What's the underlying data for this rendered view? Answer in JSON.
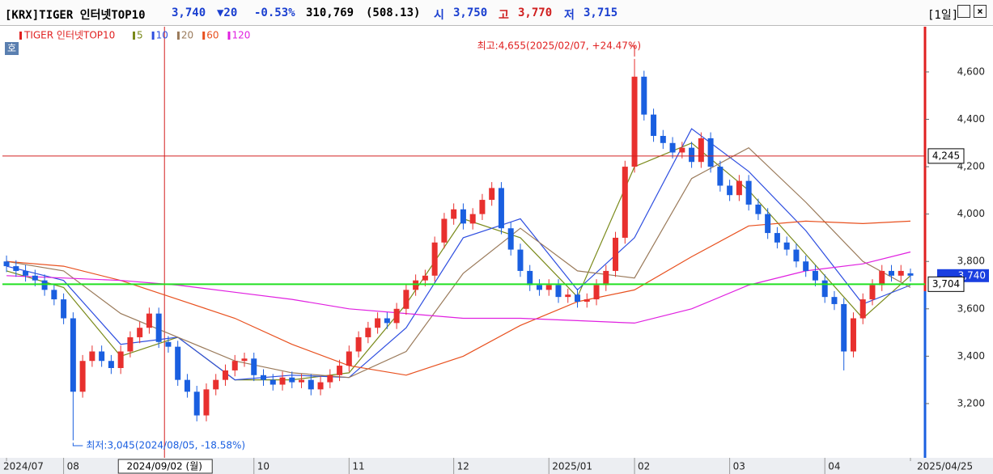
{
  "header": {
    "title": "[KRX]TIGER 인터넷TOP10",
    "price": "3,740",
    "change": "▼20",
    "change_pct": "-0.53%",
    "volume": "310,769",
    "amount": "(508.13)",
    "open_label": "시",
    "open": "3,750",
    "high_label": "고",
    "high": "3,770",
    "low_label": "저",
    "low": "3,715",
    "period": "[1일]"
  },
  "chart_data": {
    "type": "candlestick",
    "name": "TIGER 인터넷TOP10",
    "up_color": "#e8302e",
    "down_color": "#1a5fe0",
    "open": [
      3800,
      3780,
      3760,
      3740,
      3720,
      3680,
      3640,
      3560,
      3250,
      3380,
      3420,
      3380,
      3350,
      3420,
      3480,
      3520,
      3580,
      3460,
      3440,
      3300,
      3250,
      3150,
      3260,
      3300,
      3340,
      3380,
      3390,
      3320,
      3300,
      3280,
      3310,
      3290,
      3300,
      3260,
      3290,
      3320,
      3360,
      3420,
      3480,
      3520,
      3560,
      3540,
      3600,
      3680,
      3720,
      3740,
      3880,
      3980,
      4020,
      3960,
      4000,
      4060,
      4110,
      3940,
      3850,
      3760,
      3700,
      3680,
      3700,
      3650,
      3660,
      3630,
      3640,
      3700,
      3760,
      3900,
      4200,
      4580,
      4420,
      4330,
      4300,
      4260,
      4280,
      4220,
      4320,
      4200,
      4120,
      4080,
      4140,
      4040,
      4000,
      3920,
      3880,
      3850,
      3800,
      3760,
      3720,
      3650,
      3620,
      3420,
      3560,
      3640,
      3700,
      3760,
      3740,
      3750
    ],
    "high": [
      3825,
      3805,
      3785,
      3765,
      3745,
      3705,
      3665,
      3585,
      3405,
      3445,
      3445,
      3405,
      3445,
      3505,
      3545,
      3605,
      3605,
      3485,
      3465,
      3325,
      3275,
      3285,
      3325,
      3365,
      3405,
      3415,
      3415,
      3345,
      3325,
      3335,
      3335,
      3325,
      3325,
      3315,
      3345,
      3385,
      3445,
      3505,
      3545,
      3585,
      3585,
      3625,
      3705,
      3745,
      3765,
      3905,
      4005,
      4045,
      4045,
      4025,
      4085,
      4135,
      4135,
      3965,
      3875,
      3785,
      3725,
      3725,
      3725,
      3685,
      3685,
      3665,
      3725,
      3785,
      3925,
      4225,
      4655,
      4605,
      4445,
      4355,
      4325,
      4305,
      4305,
      4345,
      4345,
      4225,
      4145,
      4165,
      4165,
      4065,
      4025,
      3945,
      3905,
      3875,
      3825,
      3785,
      3745,
      3675,
      3645,
      3585,
      3665,
      3725,
      3785,
      3785,
      3785,
      3770
    ],
    "low": [
      3755,
      3735,
      3715,
      3695,
      3655,
      3615,
      3535,
      3045,
      3225,
      3355,
      3355,
      3325,
      3325,
      3395,
      3455,
      3495,
      3435,
      3415,
      3275,
      3225,
      3125,
      3125,
      3235,
      3275,
      3315,
      3355,
      3295,
      3275,
      3255,
      3255,
      3265,
      3265,
      3235,
      3235,
      3265,
      3295,
      3335,
      3395,
      3455,
      3495,
      3515,
      3515,
      3575,
      3655,
      3695,
      3715,
      3855,
      3955,
      3935,
      3935,
      3975,
      4035,
      3915,
      3825,
      3735,
      3675,
      3655,
      3655,
      3625,
      3625,
      3605,
      3605,
      3615,
      3675,
      3735,
      3875,
      4175,
      4395,
      4305,
      4275,
      4235,
      4235,
      4195,
      4195,
      4175,
      4095,
      4055,
      4055,
      4015,
      3975,
      3895,
      3855,
      3825,
      3775,
      3735,
      3695,
      3625,
      3595,
      3340,
      3395,
      3535,
      3615,
      3675,
      3715,
      3715,
      3715
    ],
    "close": [
      3780,
      3760,
      3740,
      3720,
      3680,
      3640,
      3560,
      3250,
      3380,
      3420,
      3380,
      3350,
      3420,
      3480,
      3520,
      3580,
      3460,
      3440,
      3300,
      3250,
      3150,
      3260,
      3300,
      3340,
      3380,
      3390,
      3320,
      3300,
      3280,
      3310,
      3290,
      3300,
      3260,
      3290,
      3320,
      3360,
      3420,
      3480,
      3520,
      3560,
      3540,
      3600,
      3680,
      3720,
      3740,
      3880,
      3980,
      4020,
      3960,
      4000,
      4060,
      4110,
      3940,
      3850,
      3760,
      3700,
      3680,
      3700,
      3650,
      3660,
      3630,
      3640,
      3700,
      3760,
      3900,
      4200,
      4580,
      4420,
      4330,
      4300,
      4260,
      4280,
      4220,
      4320,
      4200,
      4120,
      4080,
      4140,
      4040,
      4000,
      3920,
      3880,
      3850,
      3800,
      3760,
      3720,
      3650,
      3620,
      3420,
      3560,
      3640,
      3700,
      3760,
      3740,
      3760,
      3740
    ],
    "ma_x": [
      0,
      6,
      12,
      18,
      24,
      30,
      36,
      42,
      48,
      54,
      60,
      66,
      72,
      78,
      84,
      90,
      95
    ],
    "series": [
      {
        "name": "5",
        "color": "#7a8a1a",
        "values": [
          3760,
          3690,
          3400,
          3480,
          3300,
          3300,
          3330,
          3620,
          3980,
          3900,
          3650,
          4200,
          4300,
          4100,
          3830,
          3560,
          3740
        ]
      },
      {
        "name": "10",
        "color": "#2f4fe0",
        "values": [
          3780,
          3720,
          3450,
          3480,
          3300,
          3320,
          3310,
          3520,
          3900,
          3980,
          3680,
          3900,
          4360,
          4180,
          3930,
          3620,
          3700
        ]
      },
      {
        "name": "20",
        "color": "#9a7a5a",
        "values": [
          3800,
          3760,
          3580,
          3480,
          3380,
          3330,
          3310,
          3420,
          3750,
          3940,
          3760,
          3730,
          4150,
          4280,
          4050,
          3800,
          3690
        ]
      },
      {
        "name": "60",
        "color": "#e8501e",
        "values": [
          3800,
          3780,
          3720,
          3640,
          3560,
          3450,
          3360,
          3320,
          3400,
          3530,
          3630,
          3680,
          3820,
          3950,
          3970,
          3960,
          3970
        ]
      },
      {
        "name": "120",
        "color": "#e020e0",
        "values": [
          3740,
          3730,
          3720,
          3700,
          3670,
          3640,
          3600,
          3580,
          3560,
          3560,
          3550,
          3540,
          3600,
          3700,
          3760,
          3790,
          3840
        ]
      }
    ],
    "xlim": [
      -0.43,
      96.53
    ],
    "ylim": [
      2971,
      4791
    ],
    "yticks": [
      {
        "value": 3200,
        "label": "3,200"
      },
      {
        "value": 3400,
        "label": "3,400"
      },
      {
        "value": 3600,
        "label": "3,600"
      },
      {
        "value": 3800,
        "label": "3,800"
      },
      {
        "value": 4000,
        "label": "4,000"
      },
      {
        "value": 4200,
        "label": "4,200"
      },
      {
        "value": 4400,
        "label": "4,400"
      },
      {
        "value": 4600,
        "label": "4,600"
      }
    ],
    "xticks": [
      {
        "value": 0,
        "label": "2024/07"
      },
      {
        "value": 6,
        "label": "08"
      },
      {
        "value": 26,
        "label": "10"
      },
      {
        "value": 36,
        "label": "11"
      },
      {
        "value": 47,
        "label": "12"
      },
      {
        "value": 57,
        "label": "2025/01"
      },
      {
        "value": 66,
        "label": "02"
      },
      {
        "value": 76,
        "label": "03"
      },
      {
        "value": 86,
        "label": "04"
      },
      {
        "value": 95,
        "label": "2025/04/25"
      }
    ],
    "crosshair": {
      "value": 16.6,
      "label": "2024/09/02 (월)"
    },
    "hlines": [
      {
        "value": 4245,
        "label": "4,245",
        "color": "#d42020"
      },
      {
        "value": 3704,
        "label": "3,704",
        "color": "#22e022"
      }
    ],
    "last": {
      "value": 3740,
      "label": "3,740"
    },
    "annotations": [
      {
        "text": "최고:4,655(2025/02/07, +24.47%)",
        "x": 66,
        "y": 4655,
        "color": "#e02020"
      },
      {
        "text": "최저:3,045(2024/08/05, -18.58%)",
        "x": 7,
        "y": 3045,
        "color": "#1a5fe0"
      }
    ]
  }
}
